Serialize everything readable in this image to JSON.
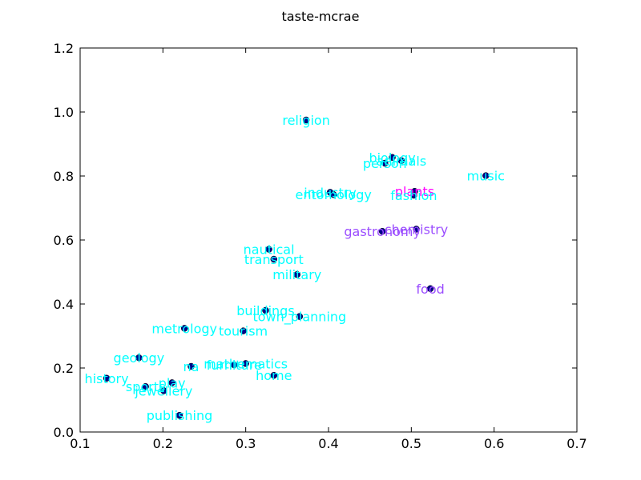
{
  "chart_data": {
    "type": "scatter",
    "title": "taste-mcrae",
    "xlabel": "",
    "ylabel": "",
    "xlim": [
      0.1,
      0.7
    ],
    "ylim": [
      0.0,
      1.2
    ],
    "xticks": [
      "0.1",
      "0.2",
      "0.3",
      "0.4",
      "0.5",
      "0.6",
      "0.7"
    ],
    "yticks": [
      "0.0",
      "0.2",
      "0.4",
      "0.6",
      "0.8",
      "1.0",
      "1.2"
    ],
    "grid": false,
    "colors": {
      "marker": "#00008b",
      "cyan": "#00ffff",
      "purple": "#9b4dff",
      "magenta": "#ff00ff"
    },
    "points": [
      {
        "label": "religion",
        "x": 0.373,
        "y": 0.975,
        "color": "cyan"
      },
      {
        "label": "biology",
        "x": 0.477,
        "y": 0.858,
        "color": "cyan"
      },
      {
        "label": "animals",
        "x": 0.488,
        "y": 0.848,
        "color": "cyan"
      },
      {
        "label": "person",
        "x": 0.468,
        "y": 0.84,
        "color": "cyan"
      },
      {
        "label": "music",
        "x": 0.59,
        "y": 0.801,
        "color": "cyan"
      },
      {
        "label": "industry",
        "x": 0.402,
        "y": 0.749,
        "color": "cyan"
      },
      {
        "label": "entomology",
        "x": 0.406,
        "y": 0.742,
        "color": "cyan"
      },
      {
        "label": "plants",
        "x": 0.504,
        "y": 0.752,
        "color": "magenta"
      },
      {
        "label": "fashion",
        "x": 0.503,
        "y": 0.74,
        "color": "cyan"
      },
      {
        "label": "gastronomy",
        "x": 0.465,
        "y": 0.627,
        "color": "purple"
      },
      {
        "label": "chemistry",
        "x": 0.506,
        "y": 0.634,
        "color": "purple"
      },
      {
        "label": "nautical",
        "x": 0.328,
        "y": 0.571,
        "color": "cyan"
      },
      {
        "label": "transport",
        "x": 0.334,
        "y": 0.54,
        "color": "cyan"
      },
      {
        "label": "military",
        "x": 0.362,
        "y": 0.492,
        "color": "cyan"
      },
      {
        "label": "food",
        "x": 0.523,
        "y": 0.448,
        "color": "purple"
      },
      {
        "label": "buildings",
        "x": 0.324,
        "y": 0.38,
        "color": "cyan"
      },
      {
        "label": "town_planning",
        "x": 0.365,
        "y": 0.361,
        "color": "cyan"
      },
      {
        "label": "metrology",
        "x": 0.226,
        "y": 0.324,
        "color": "cyan"
      },
      {
        "label": "tourism",
        "x": 0.297,
        "y": 0.316,
        "color": "cyan"
      },
      {
        "label": "geology",
        "x": 0.171,
        "y": 0.232,
        "color": "cyan"
      },
      {
        "label": "mathematics",
        "x": 0.3,
        "y": 0.214,
        "color": "cyan"
      },
      {
        "label": "furniture",
        "x": 0.286,
        "y": 0.21,
        "color": "cyan"
      },
      {
        "label": "na",
        "x": 0.234,
        "y": 0.205,
        "color": "cyan"
      },
      {
        "label": "home",
        "x": 0.334,
        "y": 0.177,
        "color": "cyan"
      },
      {
        "label": "history",
        "x": 0.132,
        "y": 0.168,
        "color": "cyan"
      },
      {
        "label": "play",
        "x": 0.211,
        "y": 0.154,
        "color": "cyan"
      },
      {
        "label": "sports",
        "x": 0.179,
        "y": 0.142,
        "color": "cyan"
      },
      {
        "label": "jewellery",
        "x": 0.201,
        "y": 0.129,
        "color": "cyan"
      },
      {
        "label": "publishing",
        "x": 0.22,
        "y": 0.052,
        "color": "cyan"
      }
    ]
  }
}
